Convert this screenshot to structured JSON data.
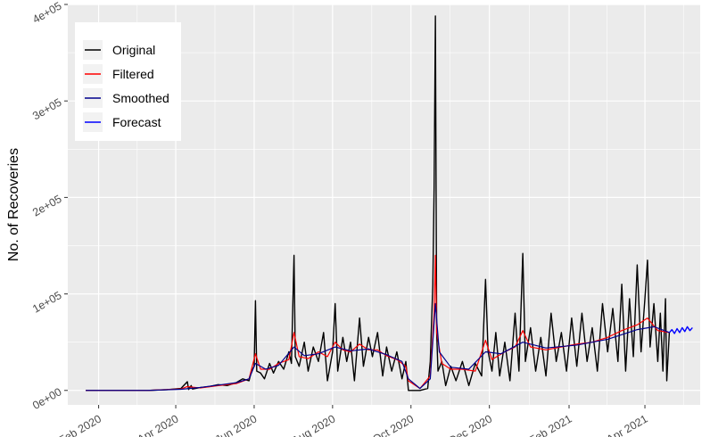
{
  "chart_data": {
    "type": "line",
    "title": "",
    "xlabel": "",
    "ylabel": "No. of Recoveries",
    "x_axis_type": "date",
    "xlim": [
      "2020-01-08",
      "2021-05-14"
    ],
    "ylim": [
      -15000,
      400000
    ],
    "x_tick_labels": [
      {
        "date": "2020-02-01",
        "label": "Feb 2020"
      },
      {
        "date": "2020-04-01",
        "label": "Apr 2020"
      },
      {
        "date": "2020-06-01",
        "label": "Jun 2020"
      },
      {
        "date": "2020-08-01",
        "label": "Aug 2020"
      },
      {
        "date": "2020-10-01",
        "label": "Oct 2020"
      },
      {
        "date": "2020-12-01",
        "label": "Dec 2020"
      },
      {
        "date": "2021-02-01",
        "label": "Feb 2021"
      },
      {
        "date": "2021-04-01",
        "label": "Apr 2021"
      }
    ],
    "y_tick_labels": [
      {
        "value": 0,
        "label": "0e+00"
      },
      {
        "value": 100000,
        "label": "1e+05"
      },
      {
        "value": 200000,
        "label": "2e+05"
      },
      {
        "value": 300000,
        "label": "3e+05"
      },
      {
        "value": 400000,
        "label": "4e+05"
      }
    ],
    "grid": true,
    "legend_position": "top-left",
    "background_color": "#ebebeb",
    "grid_color": "#ffffff",
    "series": [
      {
        "name": "Original",
        "color": "#000000",
        "points": [
          [
            "2020-01-22",
            0
          ],
          [
            "2020-02-15",
            0
          ],
          [
            "2020-03-10",
            0
          ],
          [
            "2020-03-25",
            800
          ],
          [
            "2020-04-05",
            2000
          ],
          [
            "2020-04-10",
            9000
          ],
          [
            "2020-04-11",
            1000
          ],
          [
            "2020-04-13",
            5000
          ],
          [
            "2020-04-14",
            1500
          ],
          [
            "2020-04-20",
            3000
          ],
          [
            "2020-04-27",
            4000
          ],
          [
            "2020-05-04",
            6000
          ],
          [
            "2020-05-11",
            5000
          ],
          [
            "2020-05-18",
            8000
          ],
          [
            "2020-05-23",
            12000
          ],
          [
            "2020-05-28",
            10000
          ],
          [
            "2020-05-30",
            20000
          ],
          [
            "2020-06-01",
            25000
          ],
          [
            "2020-06-02",
            93000
          ],
          [
            "2020-06-03",
            20000
          ],
          [
            "2020-06-06",
            18000
          ],
          [
            "2020-06-09",
            12000
          ],
          [
            "2020-06-13",
            28000
          ],
          [
            "2020-06-16",
            18000
          ],
          [
            "2020-06-20",
            30000
          ],
          [
            "2020-06-24",
            22000
          ],
          [
            "2020-06-28",
            40000
          ],
          [
            "2020-06-30",
            28000
          ],
          [
            "2020-07-02",
            140000
          ],
          [
            "2020-07-03",
            35000
          ],
          [
            "2020-07-06",
            25000
          ],
          [
            "2020-07-10",
            50000
          ],
          [
            "2020-07-13",
            20000
          ],
          [
            "2020-07-17",
            45000
          ],
          [
            "2020-07-21",
            30000
          ],
          [
            "2020-07-25",
            60000
          ],
          [
            "2020-07-28",
            10000
          ],
          [
            "2020-08-01",
            40000
          ],
          [
            "2020-08-03",
            90000
          ],
          [
            "2020-08-05",
            20000
          ],
          [
            "2020-08-09",
            55000
          ],
          [
            "2020-08-12",
            30000
          ],
          [
            "2020-08-15",
            50000
          ],
          [
            "2020-08-18",
            10000
          ],
          [
            "2020-08-22",
            75000
          ],
          [
            "2020-08-25",
            25000
          ],
          [
            "2020-08-29",
            55000
          ],
          [
            "2020-09-01",
            35000
          ],
          [
            "2020-09-05",
            60000
          ],
          [
            "2020-09-09",
            15000
          ],
          [
            "2020-09-12",
            45000
          ],
          [
            "2020-09-16",
            20000
          ],
          [
            "2020-09-20",
            40000
          ],
          [
            "2020-09-24",
            12000
          ],
          [
            "2020-09-27",
            30000
          ],
          [
            "2020-09-29",
            0
          ],
          [
            "2020-10-08",
            0
          ],
          [
            "2020-10-14",
            2000
          ],
          [
            "2020-10-16",
            30000
          ],
          [
            "2020-10-18",
            110000
          ],
          [
            "2020-10-19",
            210000
          ],
          [
            "2020-10-20",
            388000
          ],
          [
            "2020-10-21",
            60000
          ],
          [
            "2020-10-22",
            20000
          ],
          [
            "2020-10-25",
            30000
          ],
          [
            "2020-10-28",
            5000
          ],
          [
            "2020-11-01",
            25000
          ],
          [
            "2020-11-05",
            10000
          ],
          [
            "2020-11-10",
            30000
          ],
          [
            "2020-11-15",
            5000
          ],
          [
            "2020-11-20",
            28000
          ],
          [
            "2020-11-25",
            15000
          ],
          [
            "2020-11-28",
            115000
          ],
          [
            "2020-11-30",
            40000
          ],
          [
            "2020-12-03",
            20000
          ],
          [
            "2020-12-06",
            60000
          ],
          [
            "2020-12-09",
            15000
          ],
          [
            "2020-12-13",
            50000
          ],
          [
            "2020-12-17",
            10000
          ],
          [
            "2020-12-21",
            80000
          ],
          [
            "2020-12-24",
            20000
          ],
          [
            "2020-12-27",
            142000
          ],
          [
            "2020-12-29",
            30000
          ],
          [
            "2021-01-02",
            65000
          ],
          [
            "2021-01-06",
            20000
          ],
          [
            "2021-01-10",
            55000
          ],
          [
            "2021-01-14",
            15000
          ],
          [
            "2021-01-18",
            80000
          ],
          [
            "2021-01-22",
            30000
          ],
          [
            "2021-01-26",
            60000
          ],
          [
            "2021-01-30",
            20000
          ],
          [
            "2021-02-03",
            75000
          ],
          [
            "2021-02-07",
            25000
          ],
          [
            "2021-02-11",
            80000
          ],
          [
            "2021-02-15",
            30000
          ],
          [
            "2021-02-19",
            65000
          ],
          [
            "2021-02-23",
            20000
          ],
          [
            "2021-02-27",
            90000
          ],
          [
            "2021-03-03",
            40000
          ],
          [
            "2021-03-07",
            85000
          ],
          [
            "2021-03-11",
            30000
          ],
          [
            "2021-03-14",
            110000
          ],
          [
            "2021-03-17",
            20000
          ],
          [
            "2021-03-20",
            95000
          ],
          [
            "2021-03-23",
            35000
          ],
          [
            "2021-03-26",
            130000
          ],
          [
            "2021-03-29",
            40000
          ],
          [
            "2021-04-01",
            95000
          ],
          [
            "2021-04-03",
            135000
          ],
          [
            "2021-04-05",
            45000
          ],
          [
            "2021-04-08",
            90000
          ],
          [
            "2021-04-11",
            30000
          ],
          [
            "2021-04-13",
            80000
          ],
          [
            "2021-04-15",
            20000
          ],
          [
            "2021-04-17",
            95000
          ],
          [
            "2021-04-18",
            10000
          ],
          [
            "2021-04-20",
            60000
          ]
        ]
      },
      {
        "name": "Filtered",
        "color": "#ff0000",
        "points": [
          [
            "2020-01-22",
            0
          ],
          [
            "2020-03-10",
            0
          ],
          [
            "2020-04-05",
            1500
          ],
          [
            "2020-04-10",
            4000
          ],
          [
            "2020-04-20",
            2500
          ],
          [
            "2020-05-04",
            5000
          ],
          [
            "2020-05-18",
            7000
          ],
          [
            "2020-05-28",
            12000
          ],
          [
            "2020-06-02",
            38000
          ],
          [
            "2020-06-06",
            22000
          ],
          [
            "2020-06-13",
            22000
          ],
          [
            "2020-06-20",
            28000
          ],
          [
            "2020-06-28",
            32000
          ],
          [
            "2020-07-02",
            60000
          ],
          [
            "2020-07-06",
            35000
          ],
          [
            "2020-07-13",
            33000
          ],
          [
            "2020-07-21",
            40000
          ],
          [
            "2020-07-28",
            35000
          ],
          [
            "2020-08-03",
            50000
          ],
          [
            "2020-08-09",
            42000
          ],
          [
            "2020-08-15",
            40000
          ],
          [
            "2020-08-22",
            48000
          ],
          [
            "2020-08-29",
            42000
          ],
          [
            "2020-09-05",
            42000
          ],
          [
            "2020-09-12",
            36000
          ],
          [
            "2020-09-20",
            32000
          ],
          [
            "2020-09-27",
            25000
          ],
          [
            "2020-09-29",
            10000
          ],
          [
            "2020-10-08",
            2000
          ],
          [
            "2020-10-16",
            15000
          ],
          [
            "2020-10-19",
            80000
          ],
          [
            "2020-10-20",
            140000
          ],
          [
            "2020-10-21",
            60000
          ],
          [
            "2020-10-25",
            28000
          ],
          [
            "2020-11-01",
            22000
          ],
          [
            "2020-11-10",
            22000
          ],
          [
            "2020-11-20",
            20000
          ],
          [
            "2020-11-28",
            52000
          ],
          [
            "2020-12-03",
            32000
          ],
          [
            "2020-12-13",
            40000
          ],
          [
            "2020-12-21",
            45000
          ],
          [
            "2020-12-27",
            62000
          ],
          [
            "2021-01-02",
            45000
          ],
          [
            "2021-01-14",
            42000
          ],
          [
            "2021-01-26",
            45000
          ],
          [
            "2021-02-07",
            48000
          ],
          [
            "2021-02-19",
            50000
          ],
          [
            "2021-03-03",
            55000
          ],
          [
            "2021-03-14",
            62000
          ],
          [
            "2021-03-26",
            68000
          ],
          [
            "2021-04-03",
            75000
          ],
          [
            "2021-04-11",
            62000
          ],
          [
            "2021-04-20",
            60000
          ]
        ]
      },
      {
        "name": "Smoothed",
        "color": "#00008b",
        "points": [
          [
            "2020-01-22",
            0
          ],
          [
            "2020-03-10",
            0
          ],
          [
            "2020-04-05",
            1200
          ],
          [
            "2020-04-20",
            3000
          ],
          [
            "2020-05-04",
            5500
          ],
          [
            "2020-05-18",
            8000
          ],
          [
            "2020-05-28",
            12000
          ],
          [
            "2020-06-02",
            28000
          ],
          [
            "2020-06-10",
            22000
          ],
          [
            "2020-06-20",
            26000
          ],
          [
            "2020-07-02",
            45000
          ],
          [
            "2020-07-10",
            36000
          ],
          [
            "2020-07-21",
            38000
          ],
          [
            "2020-08-03",
            45000
          ],
          [
            "2020-08-15",
            41000
          ],
          [
            "2020-08-29",
            43000
          ],
          [
            "2020-09-12",
            37000
          ],
          [
            "2020-09-24",
            30000
          ],
          [
            "2020-09-29",
            12000
          ],
          [
            "2020-10-08",
            2000
          ],
          [
            "2020-10-16",
            12000
          ],
          [
            "2020-10-20",
            90000
          ],
          [
            "2020-10-23",
            40000
          ],
          [
            "2020-11-01",
            24000
          ],
          [
            "2020-11-15",
            22000
          ],
          [
            "2020-11-28",
            40000
          ],
          [
            "2020-12-10",
            38000
          ],
          [
            "2020-12-27",
            50000
          ],
          [
            "2021-01-14",
            44000
          ],
          [
            "2021-02-07",
            47000
          ],
          [
            "2021-03-03",
            53000
          ],
          [
            "2021-03-26",
            63000
          ],
          [
            "2021-04-08",
            66000
          ],
          [
            "2021-04-20",
            60000
          ]
        ]
      },
      {
        "name": "Forecast",
        "color": "#0000ff",
        "points": [
          [
            "2021-04-20",
            60000
          ],
          [
            "2021-04-22",
            63000
          ],
          [
            "2021-04-24",
            59000
          ],
          [
            "2021-04-26",
            64000
          ],
          [
            "2021-04-28",
            60000
          ],
          [
            "2021-04-30",
            65000
          ],
          [
            "2021-05-02",
            61000
          ],
          [
            "2021-05-04",
            66000
          ],
          [
            "2021-05-06",
            62000
          ],
          [
            "2021-05-08",
            65000
          ]
        ]
      }
    ]
  }
}
